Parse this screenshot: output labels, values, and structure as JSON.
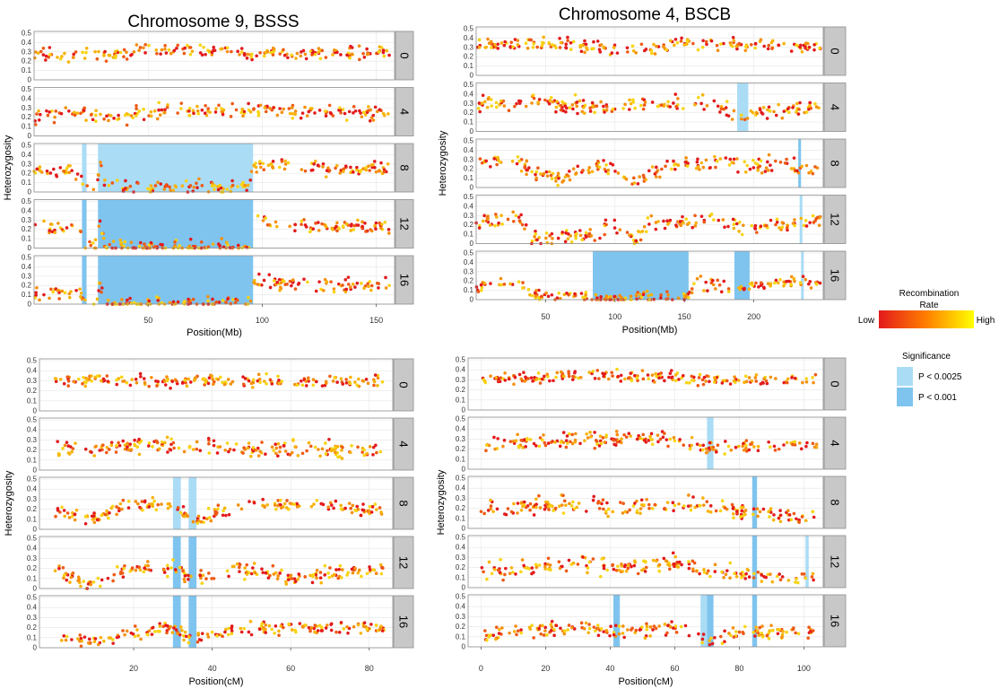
{
  "figure": {
    "legend": {
      "recombination_title": "Recombination Rate",
      "recombination_low": "Low",
      "recombination_high": "High",
      "gradient_colors": [
        "#e31a1c",
        "#ff7f00",
        "#ffff00"
      ],
      "significance_title": "Significance",
      "sig_light_label": "P < 0.0025",
      "sig_dark_label": "P < 0.001",
      "sig_light_color": "#aadcf5",
      "sig_dark_color": "#7fc4ee"
    }
  },
  "chart_data": [
    {
      "type": "scatter",
      "title": "Chromosome 9, BSSS",
      "xlabel": "Position(Mb)",
      "ylabel": "Heterozygosity",
      "xlim": [
        0,
        158
      ],
      "ylim": [
        0,
        0.5
      ],
      "xticks": [
        50,
        100,
        150
      ],
      "yticks": [
        0,
        0.1,
        0.2,
        0.3,
        0.4,
        0.5
      ],
      "panels": [
        {
          "label": "0",
          "base": [
            [
              0,
              0.27
            ],
            [
              20,
              0.27
            ],
            [
              30,
              0.25
            ],
            [
              40,
              0.3
            ],
            [
              60,
              0.32
            ],
            [
              80,
              0.3
            ],
            [
              100,
              0.28
            ],
            [
              120,
              0.3
            ],
            [
              140,
              0.3
            ],
            [
              158,
              0.28
            ]
          ],
          "spread": 0.07,
          "regions": []
        },
        {
          "label": "4",
          "base": [
            [
              0,
              0.2
            ],
            [
              15,
              0.27
            ],
            [
              30,
              0.2
            ],
            [
              40,
              0.2
            ],
            [
              60,
              0.28
            ],
            [
              80,
              0.27
            ],
            [
              100,
              0.28
            ],
            [
              120,
              0.27
            ],
            [
              140,
              0.25
            ],
            [
              158,
              0.25
            ]
          ],
          "spread": 0.08,
          "regions": []
        },
        {
          "label": "8",
          "base": [
            [
              0,
              0.22
            ],
            [
              20,
              0.2
            ],
            [
              22,
              0.03
            ],
            [
              27,
              0.03
            ],
            [
              29,
              0.3
            ],
            [
              31,
              0.05
            ],
            [
              94,
              0.05
            ],
            [
              96,
              0.3
            ],
            [
              120,
              0.25
            ],
            [
              158,
              0.25
            ]
          ],
          "spread": 0.07,
          "regions": [
            {
              "x0": 21,
              "x1": 23,
              "sig": "light"
            },
            {
              "x0": 28,
              "x1": 96,
              "sig": "light"
            }
          ]
        },
        {
          "label": "12",
          "base": [
            [
              0,
              0.2
            ],
            [
              20,
              0.22
            ],
            [
              22,
              0.02
            ],
            [
              27,
              0.02
            ],
            [
              29,
              0.25
            ],
            [
              31,
              0.01
            ],
            [
              94,
              0.01
            ],
            [
              96,
              0.3
            ],
            [
              120,
              0.25
            ],
            [
              158,
              0.22
            ]
          ],
          "spread": 0.07,
          "regions": [
            {
              "x0": 21,
              "x1": 23,
              "sig": "dark"
            },
            {
              "x0": 28,
              "x1": 96,
              "sig": "dark"
            }
          ]
        },
        {
          "label": "16",
          "base": [
            [
              0,
              0.1
            ],
            [
              20,
              0.15
            ],
            [
              22,
              0.02
            ],
            [
              27,
              0.02
            ],
            [
              29,
              0.25
            ],
            [
              31,
              0.01
            ],
            [
              94,
              0.01
            ],
            [
              96,
              0.25
            ],
            [
              120,
              0.2
            ],
            [
              158,
              0.2
            ]
          ],
          "spread": 0.07,
          "regions": [
            {
              "x0": 21,
              "x1": 23,
              "sig": "dark"
            },
            {
              "x0": 28,
              "x1": 96,
              "sig": "dark"
            }
          ]
        }
      ]
    },
    {
      "type": "scatter",
      "title": "Chromosome 4, BSCB",
      "xlabel": "Position(Mb)",
      "ylabel": "Heterozygosity",
      "xlim": [
        0,
        250
      ],
      "ylim": [
        0,
        0.5
      ],
      "xticks": [
        50,
        100,
        150,
        200
      ],
      "yticks": [
        0,
        0.1,
        0.2,
        0.3,
        0.4,
        0.5
      ],
      "panels": [
        {
          "label": "0",
          "base": [
            [
              0,
              0.32
            ],
            [
              50,
              0.35
            ],
            [
              90,
              0.3
            ],
            [
              110,
              0.25
            ],
            [
              150,
              0.35
            ],
            [
              200,
              0.33
            ],
            [
              241,
              0.3
            ]
          ],
          "spread": 0.07,
          "regions": []
        },
        {
          "label": "4",
          "base": [
            [
              0,
              0.3
            ],
            [
              60,
              0.3
            ],
            [
              90,
              0.25
            ],
            [
              120,
              0.3
            ],
            [
              170,
              0.3
            ],
            [
              192,
              0.15
            ],
            [
              200,
              0.2
            ],
            [
              241,
              0.25
            ]
          ],
          "spread": 0.08,
          "regions": [
            {
              "x0": 188,
              "x1": 196,
              "sig": "light"
            }
          ]
        },
        {
          "label": "8",
          "base": [
            [
              0,
              0.25
            ],
            [
              30,
              0.3
            ],
            [
              40,
              0.15
            ],
            [
              60,
              0.1
            ],
            [
              90,
              0.25
            ],
            [
              115,
              0.05
            ],
            [
              130,
              0.2
            ],
            [
              150,
              0.25
            ],
            [
              200,
              0.25
            ],
            [
              241,
              0.2
            ]
          ],
          "spread": 0.08,
          "regions": [
            {
              "x0": 232,
              "x1": 234,
              "sig": "dark"
            }
          ]
        },
        {
          "label": "12",
          "base": [
            [
              0,
              0.2
            ],
            [
              30,
              0.3
            ],
            [
              40,
              0.05
            ],
            [
              80,
              0.08
            ],
            [
              100,
              0.2
            ],
            [
              115,
              0.03
            ],
            [
              125,
              0.2
            ],
            [
              150,
              0.25
            ],
            [
              200,
              0.18
            ],
            [
              241,
              0.25
            ]
          ],
          "spread": 0.08,
          "regions": [
            {
              "x0": 233,
              "x1": 235,
              "sig": "light"
            }
          ]
        },
        {
          "label": "16",
          "base": [
            [
              0,
              0.15
            ],
            [
              30,
              0.2
            ],
            [
              40,
              0.05
            ],
            [
              80,
              0.03
            ],
            [
              85,
              0.01
            ],
            [
              150,
              0.01
            ],
            [
              160,
              0.2
            ],
            [
              190,
              0.1
            ],
            [
              200,
              0.15
            ],
            [
              241,
              0.2
            ]
          ],
          "spread": 0.07,
          "regions": [
            {
              "x0": 84,
              "x1": 153,
              "sig": "dark"
            },
            {
              "x0": 186,
              "x1": 197,
              "sig": "dark"
            },
            {
              "x0": 234,
              "x1": 236,
              "sig": "light"
            }
          ]
        }
      ]
    },
    {
      "type": "scatter",
      "title": "",
      "xlabel": "Position(cM)",
      "ylabel": "Heterozygosity",
      "xlim": [
        -4,
        86
      ],
      "ylim": [
        0,
        0.5
      ],
      "xticks": [
        20,
        40,
        60,
        80
      ],
      "yticks": [
        0,
        0.1,
        0.2,
        0.3,
        0.4,
        0.5
      ],
      "panels": [
        {
          "label": "0",
          "base": [
            [
              0,
              0.3
            ],
            [
              30,
              0.3
            ],
            [
              35,
              0.3
            ],
            [
              50,
              0.3
            ],
            [
              82,
              0.3
            ]
          ],
          "spread": 0.06,
          "regions": []
        },
        {
          "label": "4",
          "base": [
            [
              0,
              0.2
            ],
            [
              20,
              0.25
            ],
            [
              35,
              0.25
            ],
            [
              60,
              0.2
            ],
            [
              82,
              0.2
            ]
          ],
          "spread": 0.08,
          "regions": []
        },
        {
          "label": "8",
          "base": [
            [
              0,
              0.2
            ],
            [
              10,
              0.1
            ],
            [
              20,
              0.25
            ],
            [
              30,
              0.25
            ],
            [
              35,
              0.1
            ],
            [
              50,
              0.25
            ],
            [
              82,
              0.2
            ]
          ],
          "spread": 0.07,
          "regions": [
            {
              "x0": 30,
              "x1": 32,
              "sig": "light"
            },
            {
              "x0": 34,
              "x1": 36,
              "sig": "light"
            }
          ]
        },
        {
          "label": "12",
          "base": [
            [
              0,
              0.2
            ],
            [
              8,
              0.02
            ],
            [
              20,
              0.2
            ],
            [
              30,
              0.2
            ],
            [
              35,
              0.1
            ],
            [
              50,
              0.2
            ],
            [
              60,
              0.1
            ],
            [
              82,
              0.2
            ]
          ],
          "spread": 0.07,
          "regions": [
            {
              "x0": 30,
              "x1": 32,
              "sig": "dark"
            },
            {
              "x0": 34,
              "x1": 36,
              "sig": "dark"
            }
          ]
        },
        {
          "label": "16",
          "base": [
            [
              0,
              0.1
            ],
            [
              10,
              0.05
            ],
            [
              20,
              0.15
            ],
            [
              30,
              0.2
            ],
            [
              35,
              0.1
            ],
            [
              50,
              0.2
            ],
            [
              82,
              0.2
            ]
          ],
          "spread": 0.06,
          "regions": [
            {
              "x0": 30,
              "x1": 32,
              "sig": "dark"
            },
            {
              "x0": 34,
              "x1": 36,
              "sig": "dark"
            }
          ]
        }
      ]
    },
    {
      "type": "scatter",
      "title": "",
      "xlabel": "Position(cM)",
      "ylabel": "Heterozygosity",
      "xlim": [
        -4,
        106
      ],
      "ylim": [
        0,
        0.5
      ],
      "xticks": [
        0,
        20,
        40,
        60,
        80,
        100
      ],
      "yticks": [
        0,
        0.1,
        0.2,
        0.3,
        0.4,
        0.5
      ],
      "panels": [
        {
          "label": "0",
          "base": [
            [
              0,
              0.3
            ],
            [
              40,
              0.35
            ],
            [
              70,
              0.3
            ],
            [
              101,
              0.3
            ]
          ],
          "spread": 0.06,
          "regions": []
        },
        {
          "label": "4",
          "base": [
            [
              0,
              0.25
            ],
            [
              40,
              0.3
            ],
            [
              60,
              0.3
            ],
            [
              70,
              0.2
            ],
            [
              101,
              0.25
            ]
          ],
          "spread": 0.07,
          "regions": [
            {
              "x0": 70,
              "x1": 72,
              "sig": "light"
            }
          ]
        },
        {
          "label": "8",
          "base": [
            [
              0,
              0.2
            ],
            [
              30,
              0.25
            ],
            [
              42,
              0.2
            ],
            [
              60,
              0.25
            ],
            [
              75,
              0.2
            ],
            [
              85,
              0.15
            ],
            [
              101,
              0.1
            ]
          ],
          "spread": 0.08,
          "regions": [
            {
              "x0": 84,
              "x1": 85.5,
              "sig": "dark"
            }
          ]
        },
        {
          "label": "12",
          "base": [
            [
              0,
              0.15
            ],
            [
              30,
              0.25
            ],
            [
              42,
              0.2
            ],
            [
              60,
              0.25
            ],
            [
              75,
              0.15
            ],
            [
              85,
              0.1
            ],
            [
              101,
              0.1
            ]
          ],
          "spread": 0.08,
          "regions": [
            {
              "x0": 84,
              "x1": 85.5,
              "sig": "dark"
            },
            {
              "x0": 100.5,
              "x1": 101.5,
              "sig": "light"
            }
          ]
        },
        {
          "label": "16",
          "base": [
            [
              0,
              0.1
            ],
            [
              30,
              0.2
            ],
            [
              42,
              0.15
            ],
            [
              60,
              0.2
            ],
            [
              70,
              0.05
            ],
            [
              80,
              0.15
            ],
            [
              101,
              0.15
            ]
          ],
          "spread": 0.07,
          "regions": [
            {
              "x0": 41,
              "x1": 43,
              "sig": "dark"
            },
            {
              "x0": 68,
              "x1": 70,
              "sig": "light"
            },
            {
              "x0": 70,
              "x1": 72,
              "sig": "dark"
            },
            {
              "x0": 84,
              "x1": 85.5,
              "sig": "dark"
            }
          ]
        }
      ]
    }
  ]
}
